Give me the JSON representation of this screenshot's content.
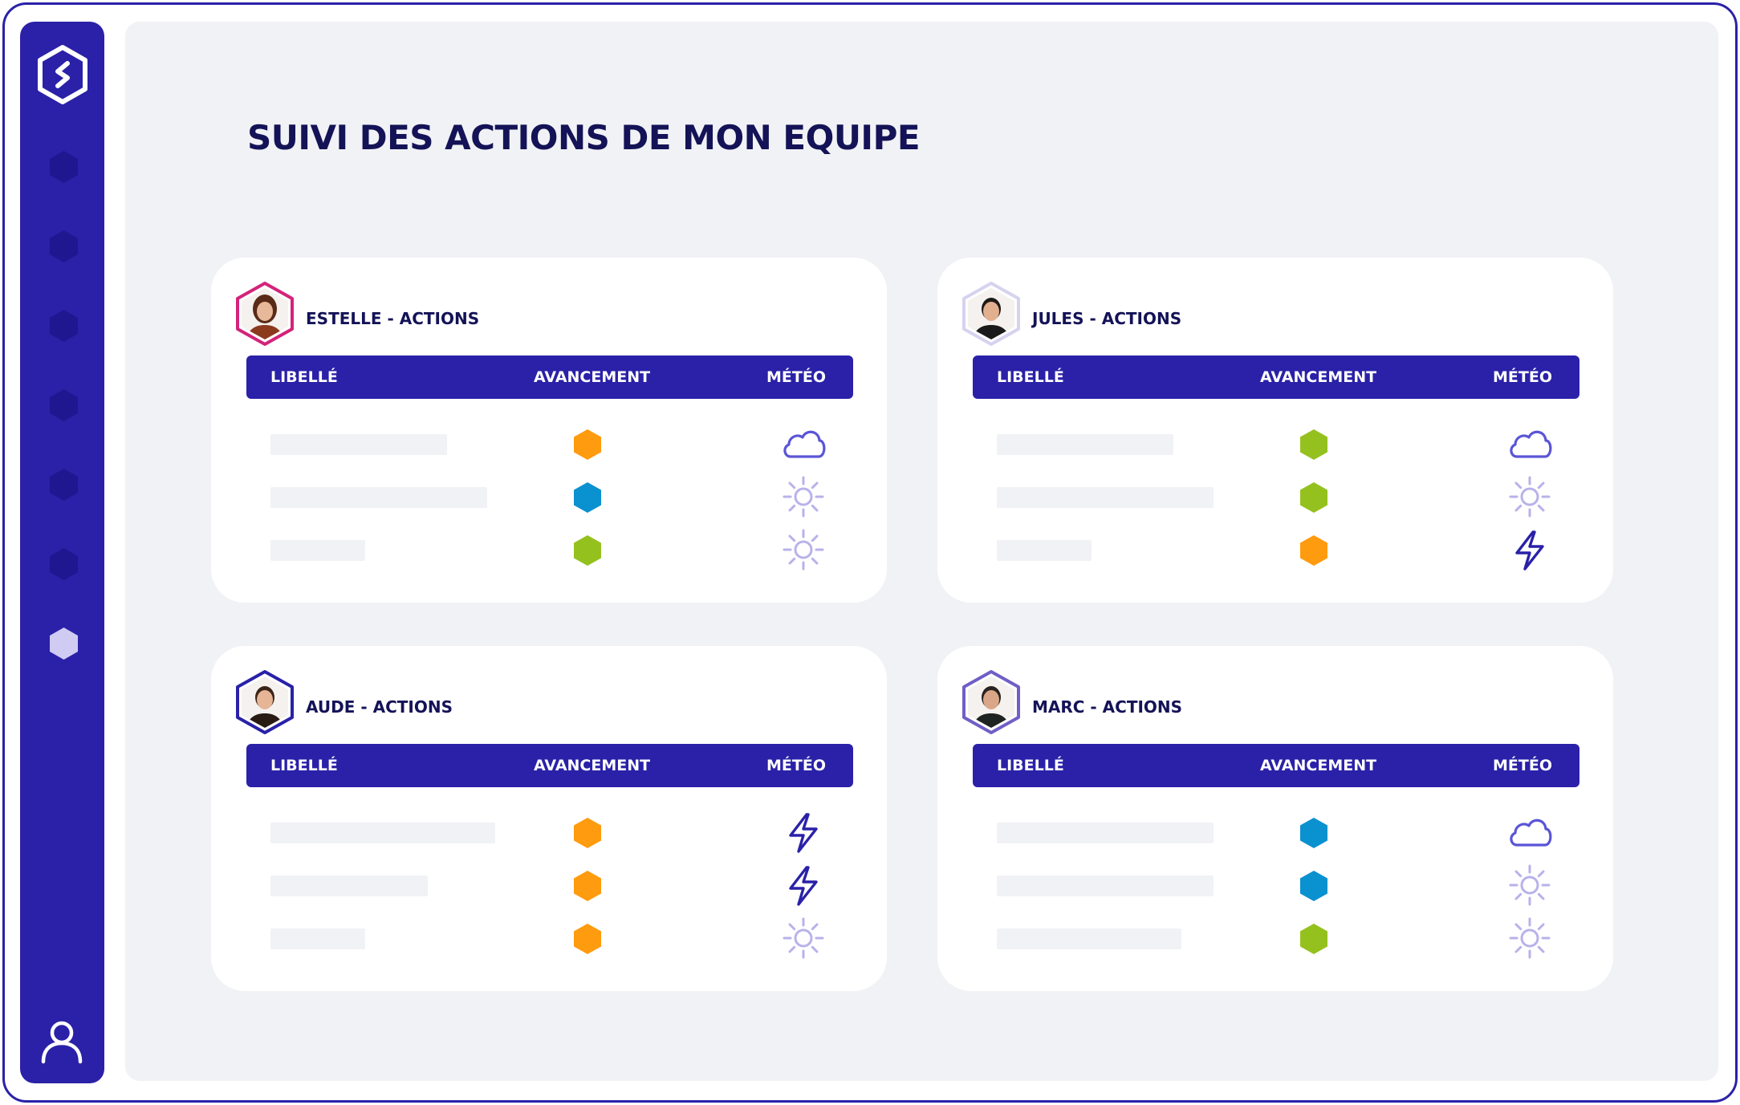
{
  "app": {
    "page_title": "SUIVI DES ACTIONS DE MON EQUIPE"
  },
  "sidebar": {
    "logo_icon": "hexagon-s-logo",
    "nav_items": [
      {
        "icon": "hexagon-icon",
        "active": false
      },
      {
        "icon": "hexagon-icon",
        "active": false
      },
      {
        "icon": "hexagon-icon",
        "active": false
      },
      {
        "icon": "hexagon-icon",
        "active": false
      },
      {
        "icon": "hexagon-icon",
        "active": false
      },
      {
        "icon": "hexagon-icon",
        "active": false
      },
      {
        "icon": "hexagon-icon",
        "active": true
      }
    ],
    "user_icon": "user-icon"
  },
  "colors": {
    "primary": "#2a21a8",
    "title": "#141357",
    "orange": "#ff9b0e",
    "blue": "#0a91d0",
    "green": "#95c11f",
    "icon_light": "#b8b2ea",
    "cloud": "#5a55d6",
    "storm": "#2a21a8"
  },
  "columns": {
    "libelle": "LIBELLÉ",
    "avancement": "AVANCEMENT",
    "meteo": "MÉTÉO"
  },
  "teams": [
    {
      "title": "ESTELLE - ACTIONS",
      "avatar_border": "#d4237a",
      "rows": [
        {
          "progress": "orange",
          "weather": "cloud"
        },
        {
          "progress": "blue",
          "weather": "sun"
        },
        {
          "progress": "green",
          "weather": "sun"
        }
      ]
    },
    {
      "title": "JULES - ACTIONS",
      "avatar_border": "#d6d3ef",
      "rows": [
        {
          "progress": "green",
          "weather": "cloud"
        },
        {
          "progress": "green",
          "weather": "sun"
        },
        {
          "progress": "orange",
          "weather": "storm"
        }
      ]
    },
    {
      "title": "AUDE - ACTIONS",
      "avatar_border": "#2a21a8",
      "rows": [
        {
          "progress": "orange",
          "weather": "storm"
        },
        {
          "progress": "orange",
          "weather": "storm"
        },
        {
          "progress": "orange",
          "weather": "sun"
        }
      ]
    },
    {
      "title": "MARC - ACTIONS",
      "avatar_border": "#6f5fc6",
      "rows": [
        {
          "progress": "blue",
          "weather": "cloud"
        },
        {
          "progress": "blue",
          "weather": "sun"
        },
        {
          "progress": "green",
          "weather": "sun"
        }
      ]
    }
  ]
}
